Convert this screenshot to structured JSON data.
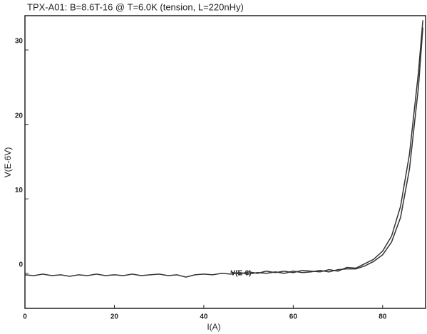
{
  "chart_data": {
    "type": "line",
    "title": "TPX-A01: B=8.6T-16 @ T=6.0K (tension, L=220nHy)",
    "x_label": "I(A)",
    "y_label": "V(E-6V)",
    "annotation": "V(E-6)",
    "x": [
      0,
      2,
      4,
      6,
      8,
      10,
      12,
      14,
      16,
      18,
      20,
      22,
      24,
      26,
      28,
      30,
      32,
      34,
      36,
      38,
      40,
      42,
      44,
      46,
      48,
      50,
      52,
      54,
      56,
      58,
      60,
      62,
      64,
      66,
      68,
      70,
      72,
      74,
      76,
      78,
      80,
      82,
      84,
      86,
      88,
      89
    ],
    "series": [
      {
        "color": "#333333",
        "values": [
          -0.2,
          -0.3,
          -0.1,
          -0.3,
          -0.2,
          -0.4,
          -0.2,
          -0.3,
          -0.1,
          -0.3,
          -0.2,
          -0.3,
          -0.1,
          -0.3,
          -0.2,
          -0.1,
          -0.3,
          -0.2,
          -0.5,
          -0.2,
          -0.1,
          -0.2,
          0,
          -0.1,
          0.1,
          -0.1,
          0.1,
          0,
          0.2,
          0,
          0.3,
          0.1,
          0.2,
          0.4,
          0.2,
          0.5,
          0.6,
          0.6,
          1.0,
          1.6,
          2.5,
          4.2,
          7.5,
          14,
          25,
          33
        ]
      },
      {
        "color": "#333333",
        "values": [
          null,
          null,
          null,
          null,
          null,
          null,
          null,
          null,
          null,
          null,
          null,
          null,
          null,
          null,
          null,
          null,
          null,
          null,
          null,
          null,
          null,
          null,
          null,
          0.2,
          -0.1,
          0.2,
          0,
          0.3,
          0.1,
          0.3,
          0.1,
          0.4,
          0.3,
          0.2,
          0.5,
          0.3,
          0.8,
          0.7,
          1.3,
          1.9,
          3,
          5,
          9,
          16,
          27,
          34
        ]
      }
    ],
    "xlim": [
      0,
      89.6
    ],
    "ylim": [
      -4.7,
      34.6
    ],
    "xticks": [
      0,
      20,
      40,
      60,
      80
    ],
    "yticks": [
      0,
      10,
      20,
      30
    ]
  }
}
